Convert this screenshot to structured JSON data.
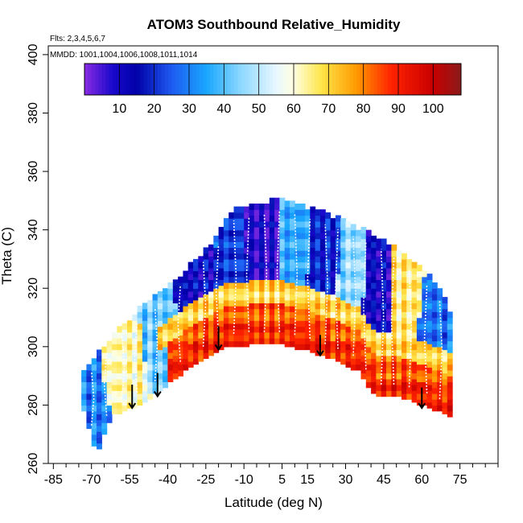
{
  "chart_data": {
    "type": "heatmap",
    "title": "ATOM3 Southbound Relative_Humidity",
    "flights_note": "Flts: 2,3,4,5,6,7",
    "dates_note": "MMDD: 1001,1004,1006,1008,1011,1014",
    "xlabel": "Latitude (deg N)",
    "ylabel": "Theta (C)",
    "xlim": [
      -87,
      90
    ],
    "ylim": [
      260,
      403
    ],
    "x_ticks": [
      -85,
      -70,
      -55,
      -40,
      -25,
      -10,
      5,
      15,
      30,
      45,
      60,
      75
    ],
    "x_tick_labels": [
      "-85",
      "-70",
      "-55",
      "-40",
      "-25",
      "-10",
      "5",
      "15",
      "30",
      "45",
      "60",
      "75"
    ],
    "y_ticks": [
      260,
      280,
      300,
      320,
      340,
      360,
      380,
      400
    ],
    "y_tick_labels": [
      "260",
      "280",
      "300",
      "320",
      "340",
      "360",
      "380",
      "400"
    ],
    "colorbar": {
      "range": [
        0,
        108
      ],
      "ticks": [
        10,
        20,
        30,
        40,
        50,
        60,
        70,
        80,
        90,
        100
      ],
      "tick_labels": [
        "10",
        "20",
        "30",
        "40",
        "50",
        "60",
        "70",
        "80",
        "90",
        "100"
      ],
      "stops": [
        {
          "v": 0,
          "c": "#8a2be2"
        },
        {
          "v": 8,
          "c": "#1a0acd"
        },
        {
          "v": 15,
          "c": "#0000a8"
        },
        {
          "v": 25,
          "c": "#1e5af0"
        },
        {
          "v": 35,
          "c": "#19a7ff"
        },
        {
          "v": 45,
          "c": "#8fd8ff"
        },
        {
          "v": 55,
          "c": "#e8f8ff"
        },
        {
          "v": 60,
          "c": "#ffffe0"
        },
        {
          "v": 68,
          "c": "#ffe54a"
        },
        {
          "v": 78,
          "c": "#ff9a00"
        },
        {
          "v": 88,
          "c": "#ff2200"
        },
        {
          "v": 100,
          "c": "#c80000"
        },
        {
          "v": 108,
          "c": "#8b1a1a"
        }
      ]
    },
    "curtain": {
      "lat_min": -74,
      "lat_max": 72,
      "top_theta": [
        [
          -74,
          290
        ],
        [
          -68,
          297
        ],
        [
          -60,
          305
        ],
        [
          -50,
          313
        ],
        [
          -40,
          320
        ],
        [
          -30,
          328
        ],
        [
          -20,
          338
        ],
        [
          -15,
          346
        ],
        [
          -5,
          348
        ],
        [
          5,
          350
        ],
        [
          15,
          347
        ],
        [
          25,
          344
        ],
        [
          35,
          340
        ],
        [
          45,
          336
        ],
        [
          55,
          330
        ],
        [
          65,
          322
        ],
        [
          72,
          310
        ]
      ],
      "bottom_theta": [
        [
          -74,
          281
        ],
        [
          -68,
          263
        ],
        [
          -62,
          277
        ],
        [
          -55,
          279
        ],
        [
          -48,
          282
        ],
        [
          -38,
          289
        ],
        [
          -28,
          295
        ],
        [
          -18,
          300
        ],
        [
          -8,
          301
        ],
        [
          5,
          301
        ],
        [
          15,
          299
        ],
        [
          25,
          296
        ],
        [
          35,
          292
        ],
        [
          42,
          283
        ],
        [
          52,
          283
        ],
        [
          62,
          280
        ],
        [
          72,
          276
        ]
      ],
      "surface_band": [
        {
          "lat_from": -40,
          "lat_to": 72,
          "theta_top_offset": 14,
          "rh": 84
        },
        {
          "lat_from": -40,
          "lat_to": 72,
          "theta_top_offset": 7,
          "rh": 90
        }
      ],
      "regions": [
        {
          "lat": [
            -74,
            -66
          ],
          "theta": [
            268,
            300
          ],
          "rh": 30
        },
        {
          "lat": [
            -66,
            -52
          ],
          "theta": [
            285,
            308
          ],
          "rh": 62
        },
        {
          "lat": [
            -48,
            -38
          ],
          "theta": [
            295,
            318
          ],
          "rh": 42
        },
        {
          "lat": [
            -35,
            -22
          ],
          "theta": [
            305,
            333
          ],
          "rh": 14
        },
        {
          "lat": [
            -18,
            -10
          ],
          "theta": [
            310,
            345
          ],
          "rh": 22
        },
        {
          "lat": [
            -8,
            3
          ],
          "theta": [
            315,
            348
          ],
          "rh": 8
        },
        {
          "lat": [
            5,
            14
          ],
          "theta": [
            312,
            344
          ],
          "rh": 36
        },
        {
          "lat": [
            16,
            26
          ],
          "theta": [
            310,
            340
          ],
          "rh": 18
        },
        {
          "lat": [
            28,
            36
          ],
          "theta": [
            305,
            338
          ],
          "rh": 46
        },
        {
          "lat": [
            38,
            47
          ],
          "theta": [
            292,
            330
          ],
          "rh": 12
        },
        {
          "lat": [
            50,
            58
          ],
          "theta": [
            300,
            330
          ],
          "rh": 66
        },
        {
          "lat": [
            60,
            70
          ],
          "theta": [
            298,
            318
          ],
          "rh": 28
        }
      ]
    },
    "profiles_lat": [
      -70,
      -64,
      -58,
      -52,
      -45,
      -35,
      -26,
      -20,
      -14,
      -8,
      -2,
      4,
      10,
      16,
      22,
      27,
      33,
      38,
      44,
      49,
      55,
      62,
      67
    ],
    "arrows": [
      {
        "lat": -54,
        "theta_top": 287,
        "theta_bottom": 279
      },
      {
        "lat": -44,
        "theta_top": 291,
        "theta_bottom": 283
      },
      {
        "lat": -20,
        "theta_top": 307,
        "theta_bottom": 299
      },
      {
        "lat": 20,
        "theta_top": 304,
        "theta_bottom": 297
      },
      {
        "lat": 60,
        "theta_top": 286,
        "theta_bottom": 279
      }
    ]
  }
}
